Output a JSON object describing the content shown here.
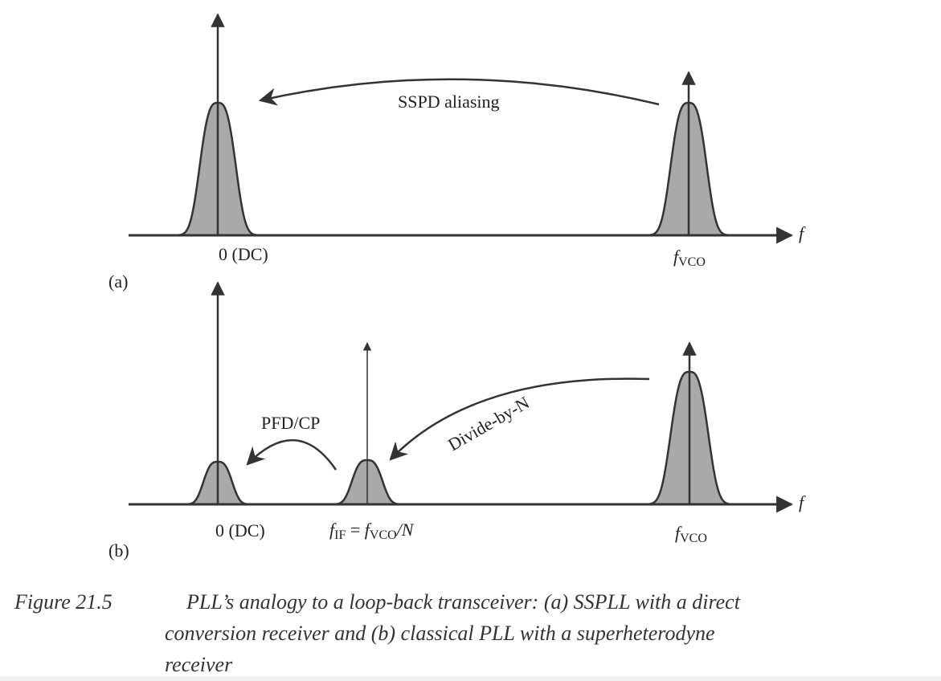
{
  "panel_a": {
    "panel_label": "(a)",
    "axis_label": "f",
    "dc_label": "0 (DC)",
    "vco_label_main": "f",
    "vco_label_sub": "VCO",
    "arrow_label": "SSPD aliasing"
  },
  "panel_b": {
    "panel_label": "(b)",
    "axis_label": "f",
    "dc_label": "0 (DC)",
    "if_label": {
      "f1": "f",
      "sub1": "IF",
      "eq": " = ",
      "f2": "f",
      "sub2": "VCO",
      "tail": "/N"
    },
    "vco_label_main": "f",
    "vco_label_sub": "VCO",
    "pfd_label": "PFD/CP",
    "divide_label": "Divide-by-N"
  },
  "caption": {
    "number": "Figure 21.5",
    "text_line1": "PLL’s analogy to a loop-back transceiver: (a) SSPLL with a direct",
    "text_line2": "conversion receiver and (b) classical PLL with a superheterodyne",
    "text_line3": "receiver"
  },
  "colors": {
    "fill": "#a9a9ab",
    "stroke": "#333333"
  }
}
